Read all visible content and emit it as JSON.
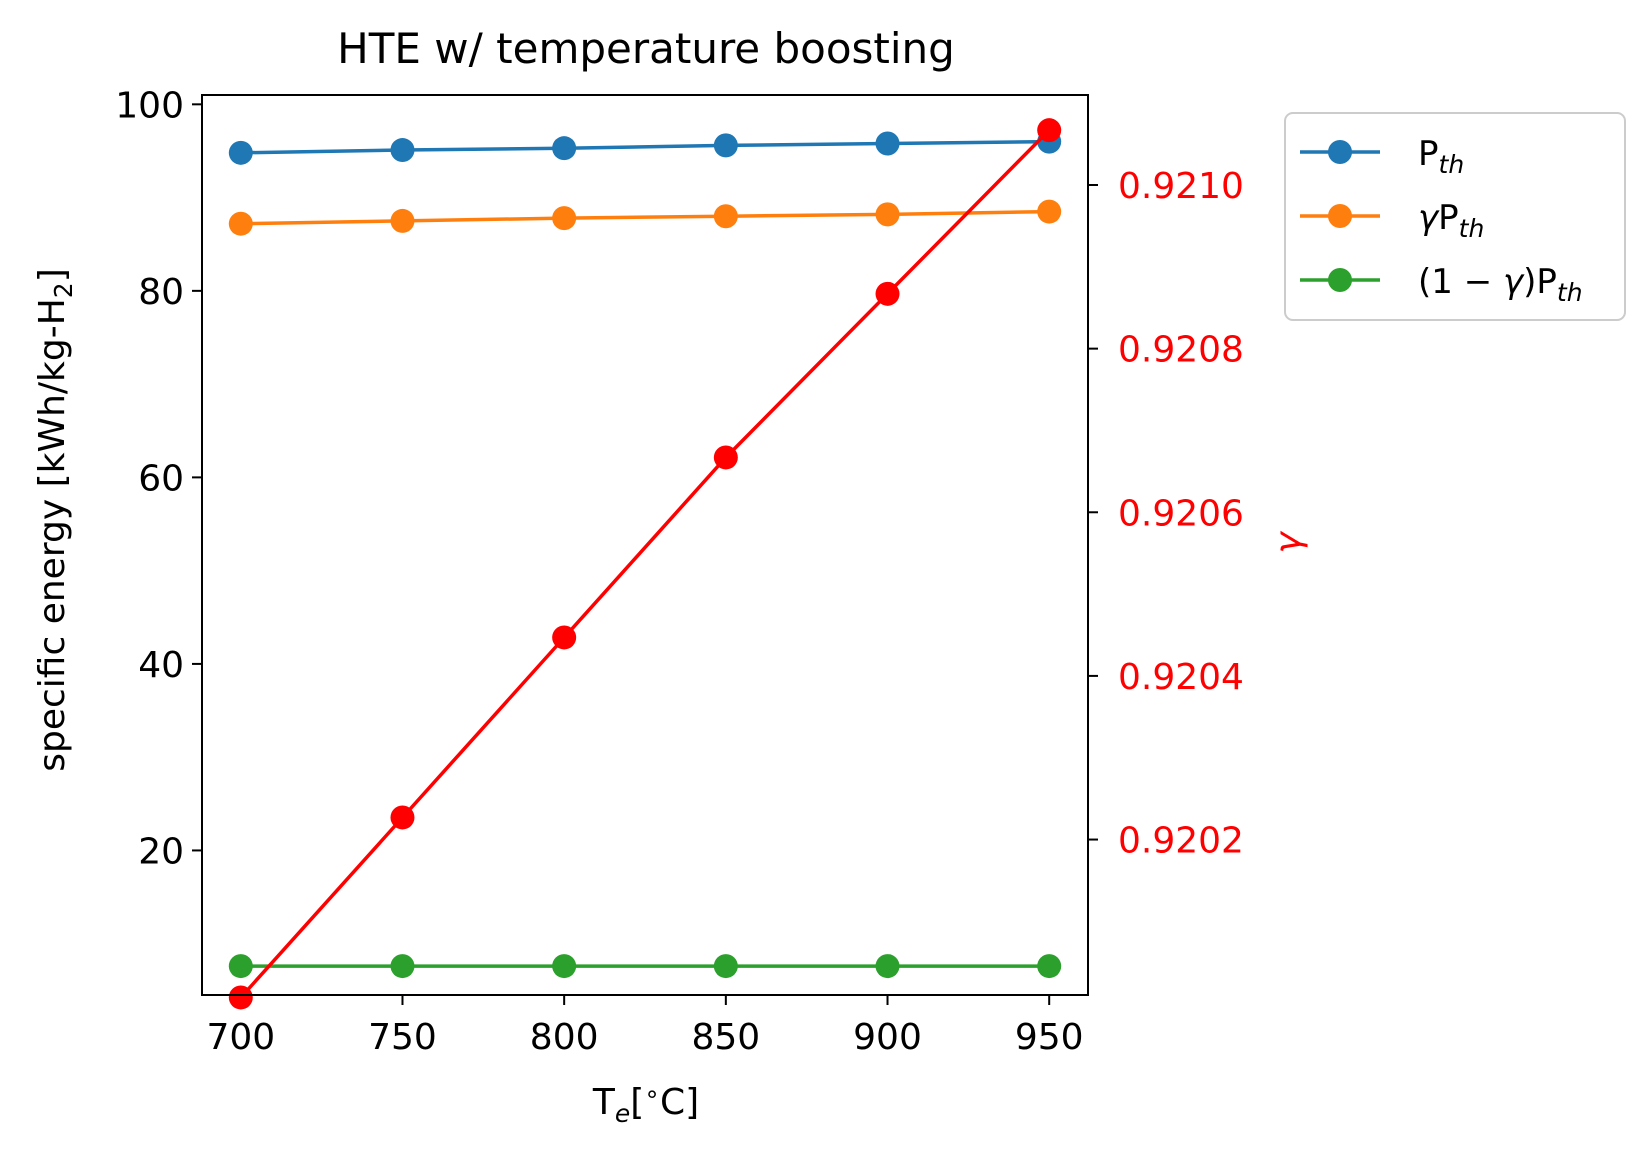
{
  "chart_data": {
    "type": "line",
    "title": "HTE w/ temperature boosting",
    "xlabel": "T_e[°C]",
    "ylabel": "specific energy [kWh/kg-H2]",
    "y2label": "γ",
    "x": [
      700,
      750,
      800,
      850,
      900,
      950
    ],
    "xlim": [
      688,
      962
    ],
    "ylim": [
      4.5,
      101
    ],
    "y2lim": [
      0.92001,
      0.92111
    ],
    "xticks": [
      700,
      750,
      800,
      850,
      900,
      950
    ],
    "yticks": [
      20,
      40,
      60,
      80,
      100
    ],
    "y2ticks": [
      0.9202,
      0.9204,
      0.9206,
      0.9208,
      0.921
    ],
    "y2tick_labels": [
      "0.9202",
      "0.9204",
      "0.9206",
      "0.9208",
      "0.9210"
    ],
    "grid": false,
    "legend_position": "outside right, top",
    "series": [
      {
        "name": "P_th",
        "axis": "left",
        "color": "#1f77b4",
        "values": [
          94.8,
          95.1,
          95.3,
          95.6,
          95.8,
          96.0
        ]
      },
      {
        "name": "γP_th",
        "axis": "left",
        "color": "#ff7f0e",
        "values": [
          87.2,
          87.5,
          87.8,
          88.0,
          88.2,
          88.5
        ]
      },
      {
        "name": "(1 − γ)P_th",
        "axis": "left",
        "color": "#2ca02c",
        "values": [
          7.6,
          7.6,
          7.6,
          7.6,
          7.6,
          7.6
        ]
      },
      {
        "axis": "right",
        "color": "#ff0000",
        "values": [
          0.920007,
          0.920227,
          0.920447,
          0.920667,
          0.920867,
          0.921067
        ]
      }
    ]
  }
}
